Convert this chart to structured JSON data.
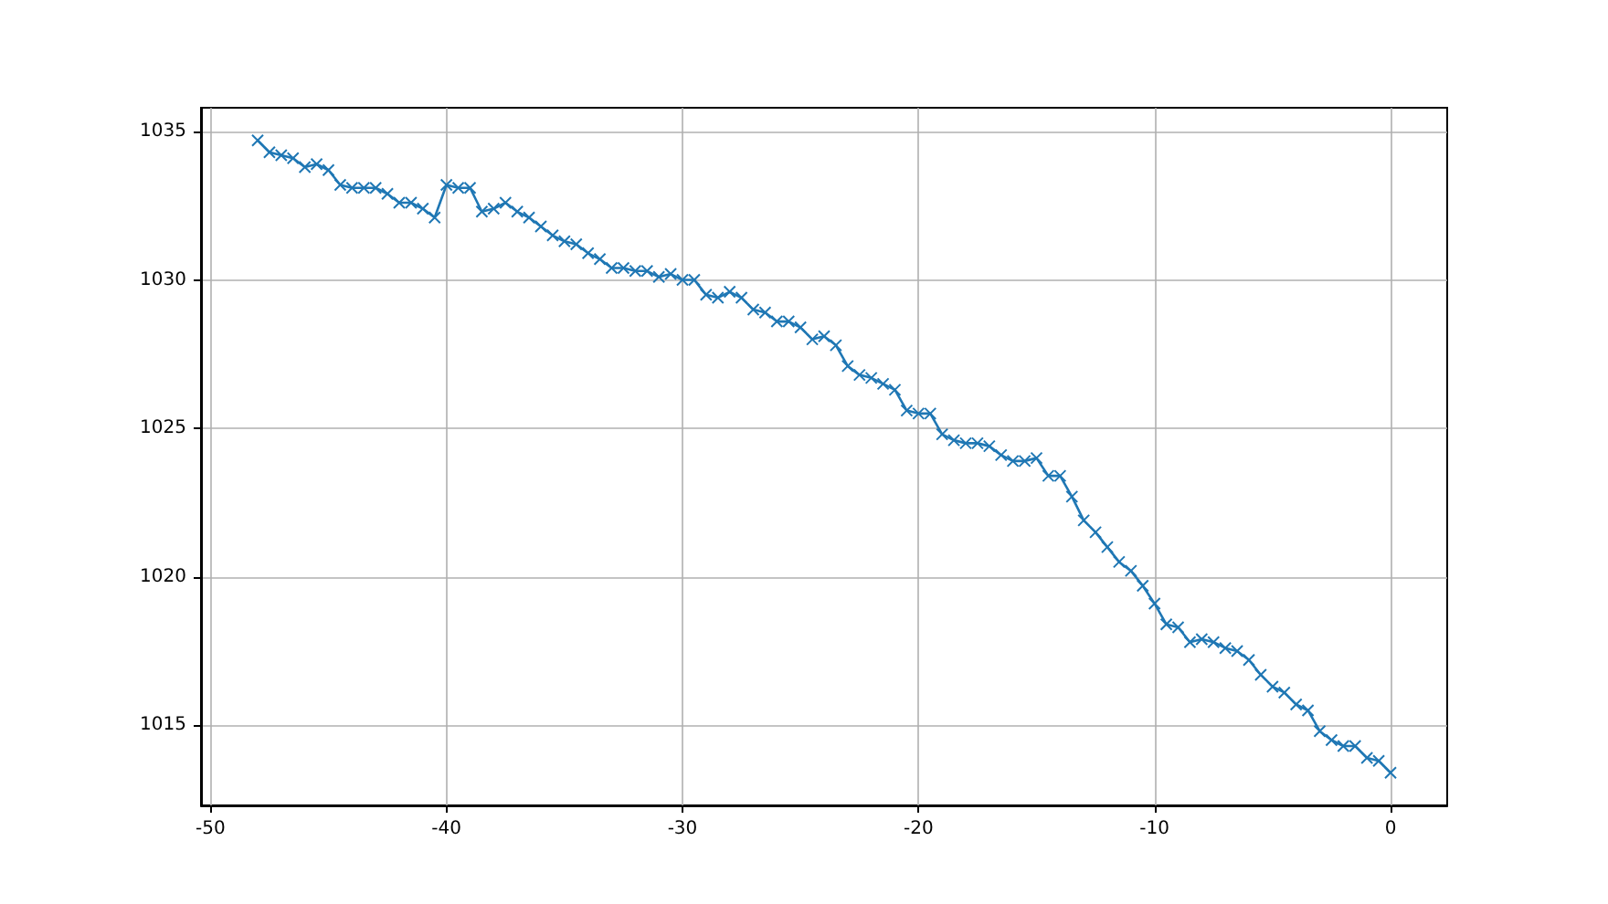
{
  "chart_data": {
    "type": "line",
    "marker": "cross",
    "grid": true,
    "xlim": [
      -50.4,
      2.4
    ],
    "xticks": [
      -50,
      -40,
      -30,
      -20,
      -10,
      0
    ],
    "ylim": [
      1012.3,
      1035.8
    ],
    "yticks": [
      1015,
      1020,
      1025,
      1030,
      1035
    ],
    "x": [
      -48,
      -47.5,
      -47,
      -46.5,
      -46,
      -45.5,
      -45,
      -44.5,
      -44,
      -43.5,
      -43,
      -42.5,
      -42,
      -41.5,
      -41,
      -40.5,
      -40,
      -39.5,
      -39,
      -38.5,
      -38,
      -37.5,
      -37,
      -36.5,
      -36,
      -35.5,
      -35,
      -34.5,
      -34,
      -33.5,
      -33,
      -32.5,
      -32,
      -31.5,
      -31,
      -30.5,
      -30,
      -29.5,
      -29,
      -28.5,
      -28,
      -27.5,
      -27,
      -26.5,
      -26,
      -25.5,
      -25,
      -24.5,
      -24,
      -23.5,
      -23,
      -22.5,
      -22,
      -21.5,
      -21,
      -20.5,
      -20,
      -19.5,
      -19,
      -18.5,
      -18,
      -17.5,
      -17,
      -16.5,
      -16,
      -15.5,
      -15,
      -14.5,
      -14,
      -13.5,
      -13,
      -12.5,
      -12,
      -11.5,
      -11,
      -10.5,
      -10,
      -9.5,
      -9,
      -8.5,
      -8,
      -7.5,
      -7,
      -6.5,
      -6,
      -5.5,
      -5,
      -4.5,
      -4,
      -3.5,
      -3,
      -2.5,
      -2,
      -1.5,
      -1,
      -0.5,
      0
    ],
    "series": [
      {
        "color": "#1f77b4",
        "values": [
          1034.7,
          1034.3,
          1034.2,
          1034.1,
          1033.8,
          1033.9,
          1033.7,
          1033.2,
          1033.1,
          1033.1,
          1033.1,
          1032.9,
          1032.6,
          1032.6,
          1032.4,
          1032.1,
          1033.2,
          1033.1,
          1033.1,
          1032.3,
          1032.4,
          1032.6,
          1032.3,
          1032.1,
          1031.8,
          1031.5,
          1031.3,
          1031.2,
          1030.9,
          1030.7,
          1030.4,
          1030.4,
          1030.3,
          1030.3,
          1030.1,
          1030.2,
          1030.0,
          1030.0,
          1029.5,
          1029.4,
          1029.6,
          1029.4,
          1029.0,
          1028.9,
          1028.6,
          1028.6,
          1028.4,
          1028.0,
          1028.1,
          1027.8,
          1027.1,
          1026.8,
          1026.7,
          1026.5,
          1026.3,
          1025.6,
          1025.5,
          1025.5,
          1024.8,
          1024.6,
          1024.5,
          1024.5,
          1024.4,
          1024.1,
          1023.9,
          1023.9,
          1024.0,
          1023.4,
          1023.4,
          1022.7,
          1021.9,
          1021.5,
          1021.0,
          1020.5,
          1020.2,
          1019.7,
          1019.1,
          1018.4,
          1018.3,
          1017.8,
          1017.9,
          1017.8,
          1017.6,
          1017.5,
          1017.2,
          1016.7,
          1016.3,
          1016.1,
          1015.7,
          1015.5,
          1014.8,
          1014.5,
          1014.3,
          1014.3,
          1013.9,
          1013.8,
          1013.4
        ]
      }
    ]
  }
}
